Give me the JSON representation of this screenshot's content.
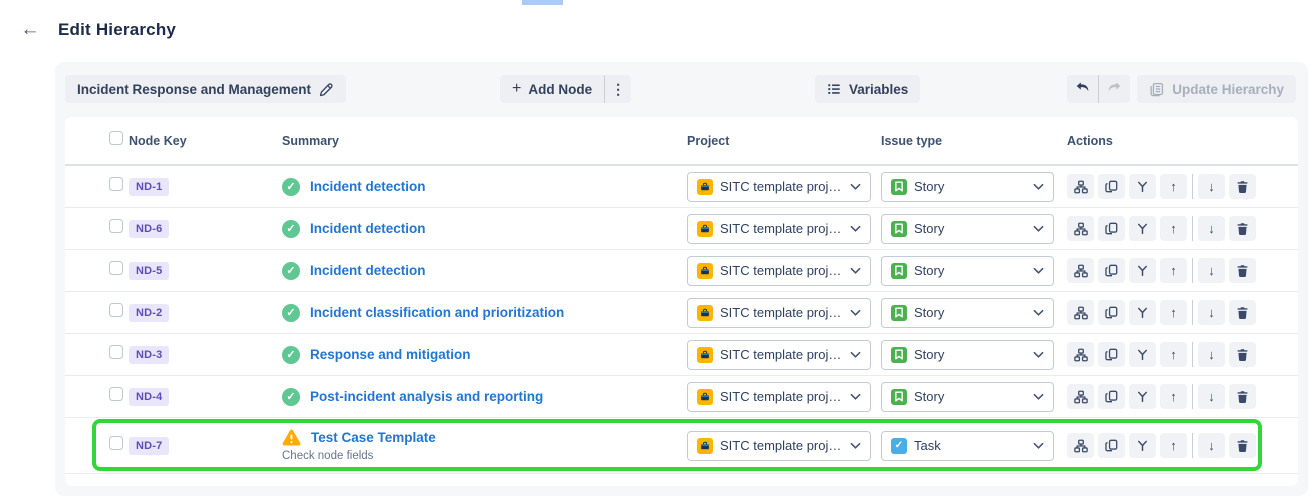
{
  "page": {
    "title": "Edit Hierarchy"
  },
  "toolbar": {
    "hierarchy_name_button": "Incident Response and Management",
    "add_node_button": "Add Node",
    "variables_button": "Variables",
    "update_hierarchy_button": "Update Hierarchy"
  },
  "table": {
    "headers": {
      "node_key": "Node Key",
      "summary": "Summary",
      "project": "Project",
      "issue_type": "Issue type",
      "actions": "Actions"
    },
    "action_icons": [
      "sitemap",
      "copy",
      "branch",
      "move-up",
      "move-down",
      "trash"
    ],
    "rows": [
      {
        "key": "ND-1",
        "summary": "Incident detection",
        "status": "success",
        "project": "SITC template project",
        "issue_type": "Story",
        "issue_kind": "story"
      },
      {
        "key": "ND-6",
        "summary": "Incident detection",
        "status": "success",
        "project": "SITC template project",
        "issue_type": "Story",
        "issue_kind": "story"
      },
      {
        "key": "ND-5",
        "summary": "Incident detection",
        "status": "success",
        "project": "SITC template project",
        "issue_type": "Story",
        "issue_kind": "story"
      },
      {
        "key": "ND-2",
        "summary": "Incident classification and prioritization",
        "status": "success",
        "project": "SITC template project",
        "issue_type": "Story",
        "issue_kind": "story"
      },
      {
        "key": "ND-3",
        "summary": "Response and mitigation",
        "status": "success",
        "project": "SITC template project",
        "issue_type": "Story",
        "issue_kind": "story"
      },
      {
        "key": "ND-4",
        "summary": "Post-incident analysis and reporting",
        "status": "success",
        "project": "SITC template project",
        "issue_type": "Story",
        "issue_kind": "story"
      },
      {
        "key": "ND-7",
        "summary": "Test Case Template",
        "status": "warning",
        "warning_text": "Check node fields",
        "project": "SITC template project",
        "issue_type": "Task",
        "issue_kind": "task",
        "highlighted": true
      }
    ]
  },
  "colors": {
    "link_blue": "#2176D2",
    "success_green": "#5EC792",
    "warning_yellow": "#FFAB00",
    "highlight_green": "#35D43A",
    "badge_bg": "#E9E5FB",
    "badge_text": "#5E4DB2",
    "card_bg": "#F6F7F9"
  }
}
